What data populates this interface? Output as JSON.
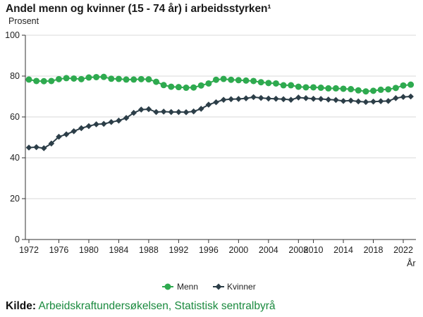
{
  "colors": {
    "menn": "#2eaa4f",
    "kvinner": "#2c3e48",
    "grid": "#d9d9d9",
    "source": "#1a8a3e"
  },
  "source": {
    "label": "Kilde:",
    "text": "Arbeidskraftundersøkelsen, Statistisk sentralbyrå"
  },
  "chart_data": {
    "type": "line",
    "title": "Andel menn og kvinner (15 - 74 år) i arbeidsstyrken¹",
    "ylabel": "Prosent",
    "xlabel": "År",
    "ylim": [
      0,
      100
    ],
    "yticks": [
      0,
      20,
      40,
      60,
      80,
      100
    ],
    "xticks": [
      1972,
      1976,
      1980,
      1984,
      1988,
      1992,
      1996,
      2000,
      2004,
      2008,
      2010,
      2014,
      2018,
      2022
    ],
    "xlim": [
      1972,
      2023
    ],
    "grid": true,
    "legend": "bottom-center",
    "x": [
      1972,
      1973,
      1974,
      1975,
      1976,
      1977,
      1978,
      1979,
      1980,
      1981,
      1982,
      1983,
      1984,
      1985,
      1986,
      1987,
      1988,
      1989,
      1990,
      1991,
      1992,
      1993,
      1994,
      1995,
      1996,
      1997,
      1998,
      1999,
      2000,
      2001,
      2002,
      2003,
      2004,
      2005,
      2006,
      2007,
      2008,
      2009,
      2010,
      2011,
      2012,
      2013,
      2014,
      2015,
      2016,
      2017,
      2018,
      2019,
      2020,
      2021,
      2022,
      2023
    ],
    "series": [
      {
        "name": "Menn",
        "marker": "circle",
        "values": [
          78.3,
          77.6,
          77.5,
          77.6,
          78.5,
          79.0,
          78.8,
          78.5,
          79.3,
          79.5,
          79.6,
          78.7,
          78.6,
          78.3,
          78.3,
          78.5,
          78.4,
          77.2,
          75.6,
          74.8,
          74.6,
          74.3,
          74.4,
          75.4,
          76.4,
          78.2,
          78.6,
          78.2,
          78.0,
          77.8,
          77.6,
          77.0,
          76.6,
          76.4,
          75.5,
          75.5,
          74.8,
          74.5,
          74.5,
          74.3,
          74.0,
          74.0,
          73.8,
          73.6,
          73.0,
          72.5,
          72.8,
          73.3,
          73.5,
          74.2,
          75.4,
          75.8
        ]
      },
      {
        "name": "Kvinner",
        "marker": "diamond",
        "values": [
          45.0,
          45.2,
          44.7,
          47.0,
          50.3,
          51.5,
          53.0,
          54.5,
          55.5,
          56.4,
          56.6,
          57.5,
          58.2,
          59.5,
          62.0,
          63.6,
          63.8,
          62.4,
          62.6,
          62.4,
          62.4,
          62.3,
          62.7,
          64.0,
          66.0,
          67.2,
          68.4,
          68.7,
          68.8,
          69.1,
          69.7,
          69.3,
          69.0,
          68.9,
          68.7,
          68.4,
          69.5,
          69.2,
          68.9,
          68.8,
          68.5,
          68.3,
          67.8,
          68.0,
          67.6,
          67.3,
          67.5,
          67.7,
          67.8,
          69.2,
          69.8,
          70.0
        ]
      }
    ]
  }
}
